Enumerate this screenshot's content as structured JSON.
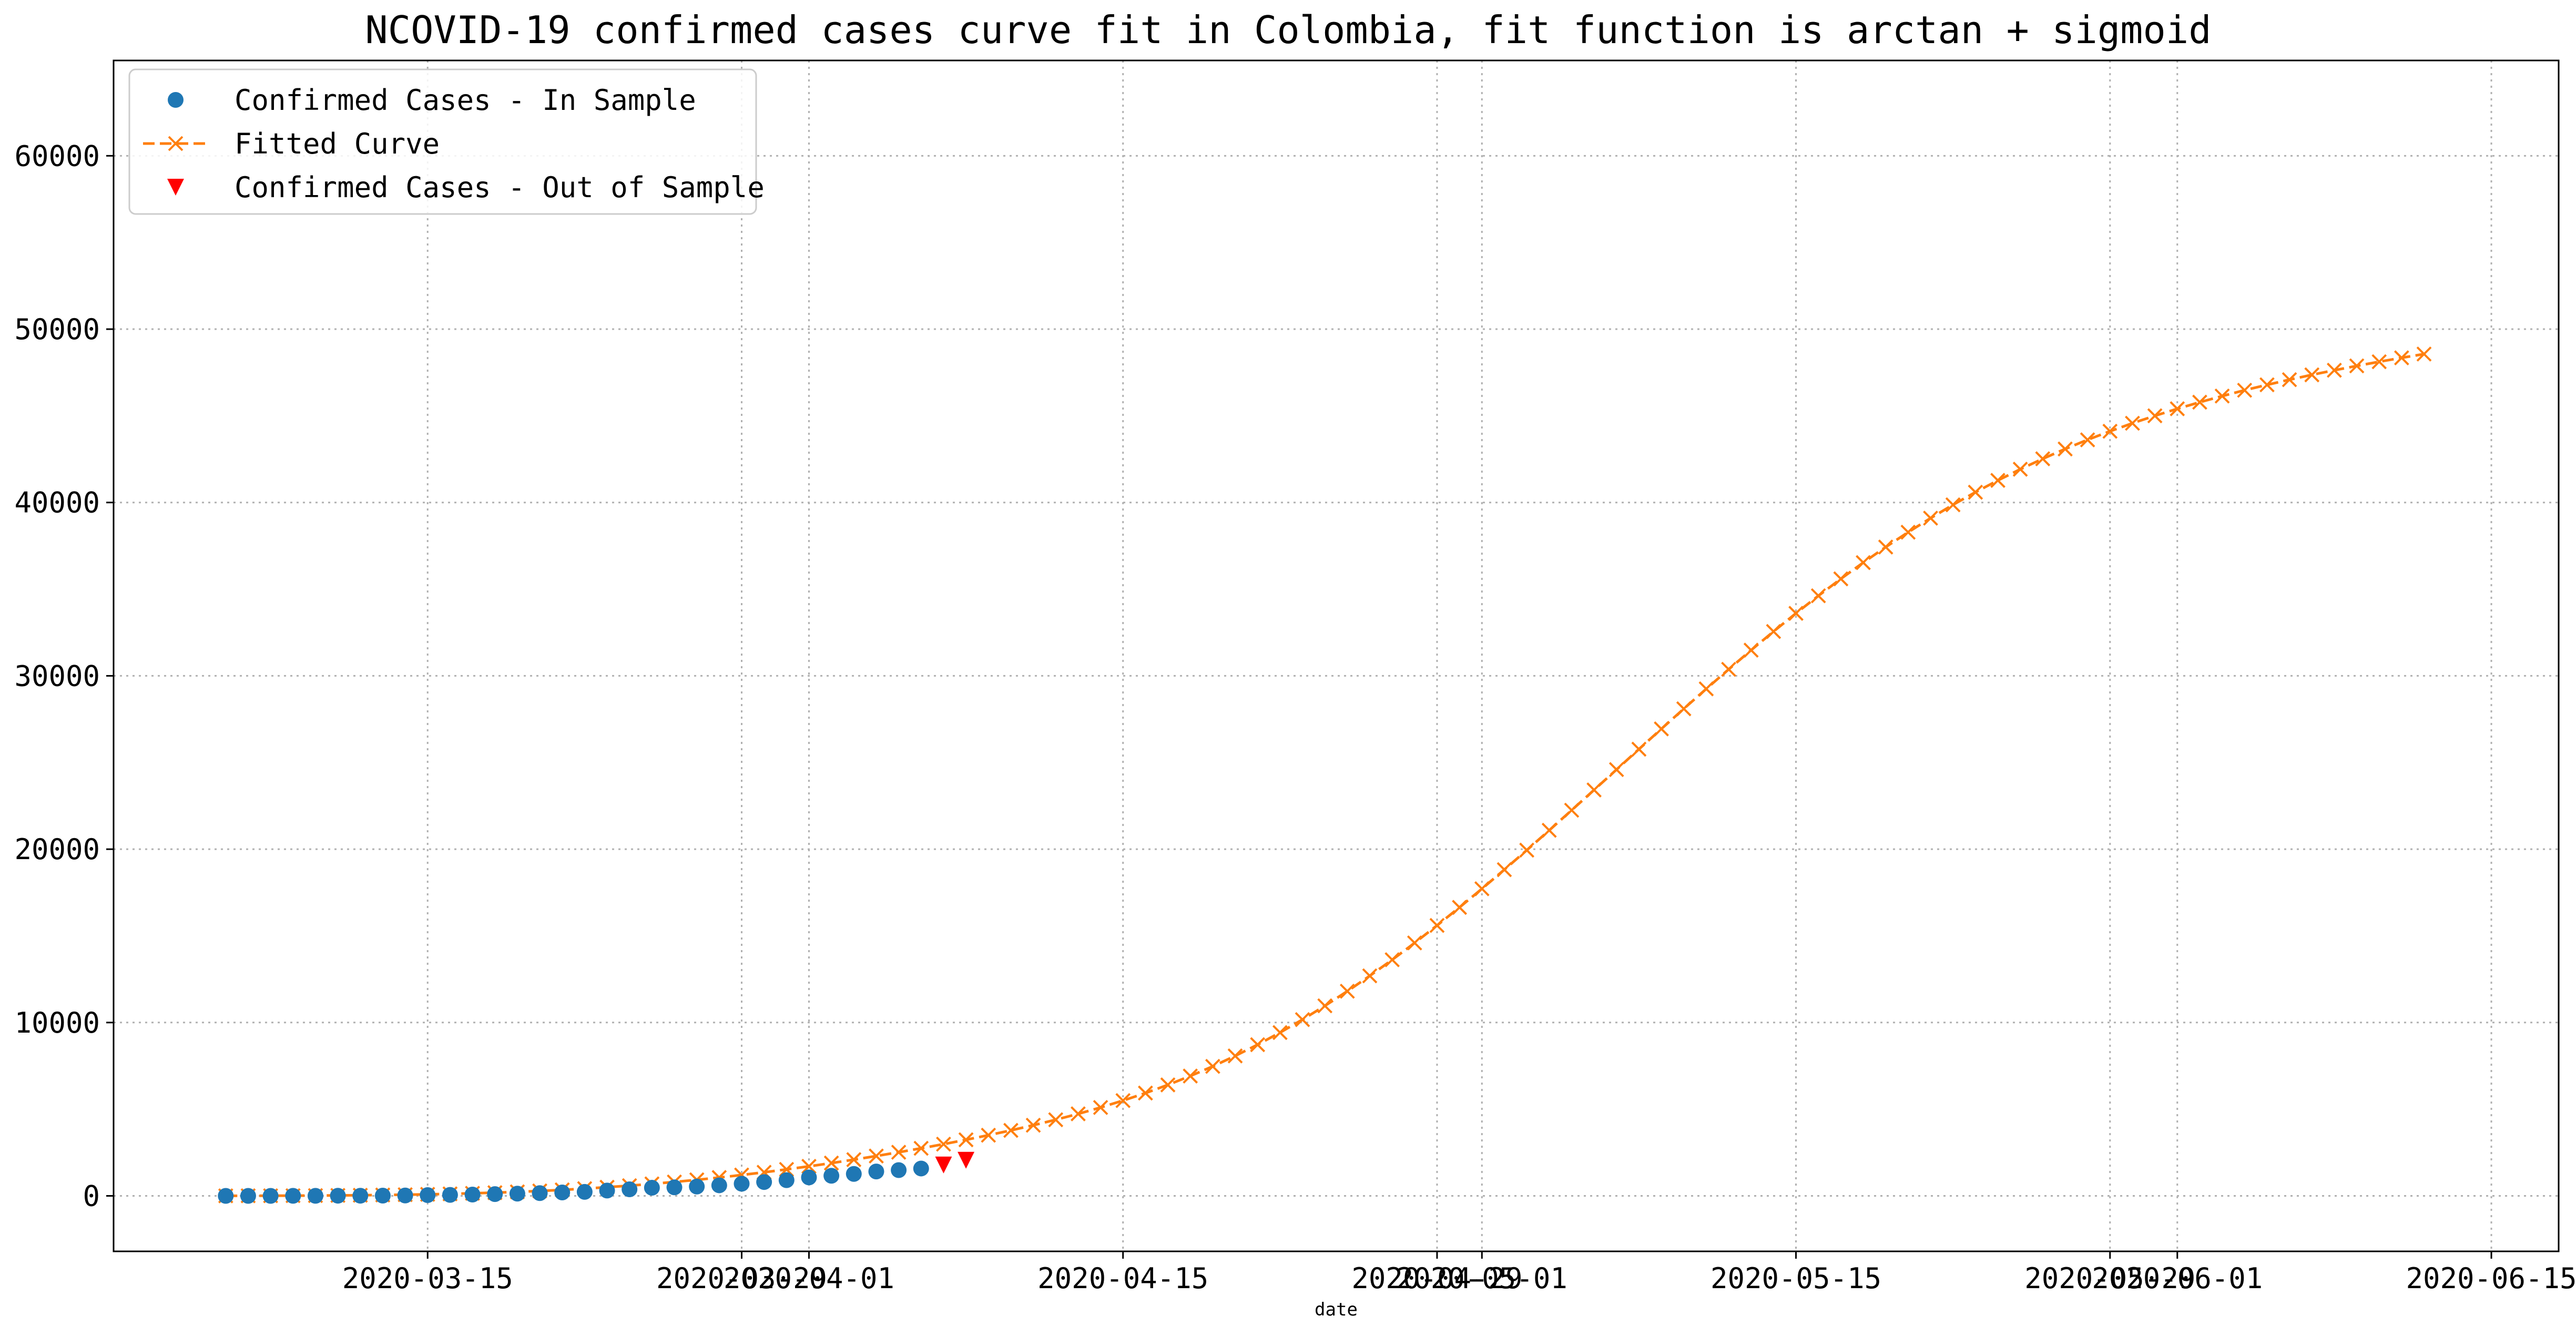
{
  "chart_data": {
    "type": "line",
    "title": "NCOVID-19 confirmed cases curve fit in Colombia, fit function is arctan + sigmoid",
    "xlabel": "date",
    "ylabel": "",
    "x_is_date": true,
    "xlim": [
      "2020-03-01",
      "2020-06-18"
    ],
    "ylim": [
      -3200,
      65500
    ],
    "grid": true,
    "legend_position": "top-left",
    "x_tick_labels": [
      "2020-03-15",
      "2020-03-29",
      "2020-04-01",
      "2020-04-15",
      "2020-04-29",
      "2020-05-01",
      "2020-05-15",
      "2020-05-29",
      "2020-06-01",
      "2020-06-15"
    ],
    "y_tick_labels": [
      "0",
      "10000",
      "20000",
      "30000",
      "40000",
      "50000",
      "60000"
    ],
    "y_ticks": [
      0,
      10000,
      20000,
      30000,
      40000,
      50000,
      60000
    ],
    "colors": {
      "in_sample": "#1f77b4",
      "fitted": "#ff7f0e",
      "out_sample": "#ff0000",
      "grid": "#b0b0b0"
    },
    "series": [
      {
        "name": "Confirmed Cases - In Sample",
        "marker": "circle",
        "x": [
          "2020-03-06",
          "2020-03-07",
          "2020-03-08",
          "2020-03-09",
          "2020-03-10",
          "2020-03-11",
          "2020-03-12",
          "2020-03-13",
          "2020-03-14",
          "2020-03-15",
          "2020-03-16",
          "2020-03-17",
          "2020-03-18",
          "2020-03-19",
          "2020-03-20",
          "2020-03-21",
          "2020-03-22",
          "2020-03-23",
          "2020-03-24",
          "2020-03-25",
          "2020-03-26",
          "2020-03-27",
          "2020-03-28",
          "2020-03-29",
          "2020-03-30",
          "2020-03-31",
          "2020-04-01",
          "2020-04-02",
          "2020-04-03",
          "2020-04-04",
          "2020-04-05",
          "2020-04-06"
        ],
        "y": [
          1,
          1,
          1,
          3,
          3,
          9,
          9,
          16,
          24,
          45,
          57,
          75,
          102,
          128,
          158,
          196,
          231,
          306,
          378,
          470,
          491,
          539,
          608,
          702,
          798,
          906,
          1065,
          1161,
          1267,
          1406,
          1485,
          1579
        ]
      },
      {
        "name": "Fitted Curve",
        "marker": "x",
        "x_start": "2020-03-06",
        "x_step_days": 1,
        "y": [
          2,
          5,
          8,
          12,
          18,
          26,
          37,
          51,
          68,
          89,
          115,
          148,
          186,
          232,
          285,
          347,
          418,
          499,
          590,
          691,
          803,
          926,
          1060,
          1205,
          1361,
          1528,
          1705,
          1893,
          2091,
          2299,
          2517,
          2745,
          2984,
          3235,
          3500,
          3779,
          4076,
          4393,
          4733,
          5100,
          5498,
          5931,
          6402,
          6914,
          7470,
          8073,
          8723,
          9422,
          10169,
          10964,
          11806,
          12693,
          13623,
          14593,
          15601,
          16643,
          17717,
          18819,
          19944,
          21089,
          22248,
          23418,
          24593,
          25768,
          26939,
          28101,
          29248,
          30376,
          31481,
          32559,
          33606,
          34619,
          35596,
          36533,
          37430,
          38285,
          39097,
          39866,
          40592,
          41276,
          41919,
          42522,
          43087,
          43615,
          44109,
          44571,
          45003,
          45407,
          45786,
          46141,
          46475,
          46789,
          47085,
          47365,
          47630,
          47881,
          48120,
          48347,
          48564
        ]
      },
      {
        "name": "Confirmed Cases - Out of Sample",
        "marker": "triangle-down",
        "x": [
          "2020-04-07",
          "2020-04-08"
        ],
        "y": [
          1780,
          2054
        ]
      }
    ]
  }
}
